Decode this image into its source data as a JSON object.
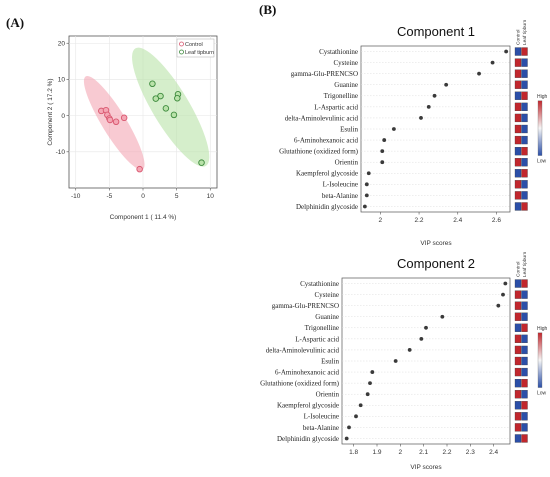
{
  "panels": {
    "a_label": "(A)",
    "b_label": "(B)"
  },
  "colors": {
    "control": "#f4a6b4",
    "control_stroke": "#d9576f",
    "leaf_tipburn": "#b9e2a9",
    "leaf_tipburn_stroke": "#3c8a3c",
    "heat_high": "#c1272d",
    "heat_low": "#2b4fa8",
    "heat_mid": "#f5f5f5",
    "dot": "#3a3a3a"
  },
  "chart_data": [
    {
      "type": "scatter",
      "title": "",
      "xlabel": "Component 1 ( 11.4 %)",
      "ylabel": "Component 2 ( 17.2 %)",
      "xlim": [
        -11,
        11
      ],
      "ylim": [
        -20,
        22
      ],
      "xticks": [
        -10,
        -5,
        0,
        5,
        10
      ],
      "yticks": [
        -10,
        0,
        10,
        20
      ],
      "legend": [
        "Control",
        "Leaf tipburn"
      ],
      "legend_position": "top-right",
      "series": [
        {
          "name": "Control",
          "x": [
            -6.2,
            -5.5,
            -5.3,
            -5.0,
            -4.9,
            -4.0,
            -2.8,
            -0.5
          ],
          "y": [
            1.3,
            1.5,
            0.2,
            -0.8,
            -1.2,
            -1.7,
            -0.6,
            -14.8
          ]
        },
        {
          "name": "Leaf tipburn",
          "x": [
            1.4,
            2.6,
            1.9,
            5.2,
            5.1,
            3.4,
            4.6,
            8.7
          ],
          "y": [
            8.8,
            5.4,
            4.7,
            5.9,
            4.8,
            2.0,
            0.2,
            -13.0
          ]
        }
      ]
    },
    {
      "type": "scatter",
      "title": "Component 1",
      "xlabel": "VIP scores",
      "xticks": [
        2.0,
        2.2,
        2.4,
        2.6
      ],
      "xlim": [
        1.9,
        2.67
      ],
      "heatmap_header": [
        "Control",
        "Leaf tipburn"
      ],
      "heatmap_scale": [
        "High",
        "Low"
      ],
      "categories": [
        "Cystathionine",
        "Cysteine",
        "gamma-Glu-PRENCSO",
        "Guanine",
        "Trigonelline",
        "L-Aspartic acid",
        "delta-Aminolevulinic acid",
        "Esulin",
        "6-Aminohexanoic acid",
        "Glutathione (oxidized form)",
        "Orientin",
        "Kaempferol glycoside",
        "L-Isoleucine",
        "beta-Alanine",
        "Delphinidin glycoside"
      ],
      "values": [
        2.65,
        2.58,
        2.51,
        2.34,
        2.28,
        2.25,
        2.21,
        2.07,
        2.02,
        2.01,
        2.01,
        1.94,
        1.93,
        1.93,
        1.92
      ],
      "heatmap": [
        [
          "low",
          "high"
        ],
        [
          "high",
          "low"
        ],
        [
          "high",
          "low"
        ],
        [
          "high",
          "low"
        ],
        [
          "low",
          "high"
        ],
        [
          "high",
          "low"
        ],
        [
          "high",
          "low"
        ],
        [
          "high",
          "low"
        ],
        [
          "high",
          "low"
        ],
        [
          "low",
          "high"
        ],
        [
          "high",
          "low"
        ],
        [
          "low",
          "high"
        ],
        [
          "high",
          "low"
        ],
        [
          "high",
          "low"
        ],
        [
          "low",
          "high"
        ]
      ]
    },
    {
      "type": "scatter",
      "title": "Component 2",
      "xlabel": "VIP scores",
      "xticks": [
        1.8,
        1.9,
        2.0,
        2.1,
        2.2,
        2.3,
        2.4
      ],
      "xlim": [
        1.75,
        2.47
      ],
      "heatmap_header": [
        "Control",
        "Leaf tipburn"
      ],
      "heatmap_scale": [
        "High",
        "Low"
      ],
      "categories": [
        "Cystathionine",
        "Cysteine",
        "gamma-Glu-PRENCSO",
        "Guanine",
        "Trigonelline",
        "L-Aspartic acid",
        "delta-Aminolevulinic acid",
        "Esulin",
        "6-Aminohexanoic acid",
        "Glutathione (oxidized form)",
        "Orientin",
        "Kaempferol glycoside",
        "L-Isoleucine",
        "beta-Alanine",
        "Delphinidin glycoside"
      ],
      "values": [
        2.45,
        2.44,
        2.42,
        2.18,
        2.11,
        2.09,
        2.04,
        1.98,
        1.88,
        1.87,
        1.86,
        1.83,
        1.81,
        1.78,
        1.77
      ],
      "heatmap": [
        [
          "low",
          "high"
        ],
        [
          "high",
          "low"
        ],
        [
          "high",
          "low"
        ],
        [
          "high",
          "low"
        ],
        [
          "low",
          "high"
        ],
        [
          "high",
          "low"
        ],
        [
          "high",
          "low"
        ],
        [
          "high",
          "low"
        ],
        [
          "high",
          "low"
        ],
        [
          "low",
          "high"
        ],
        [
          "high",
          "low"
        ],
        [
          "low",
          "high"
        ],
        [
          "high",
          "low"
        ],
        [
          "high",
          "low"
        ],
        [
          "low",
          "high"
        ]
      ]
    }
  ]
}
